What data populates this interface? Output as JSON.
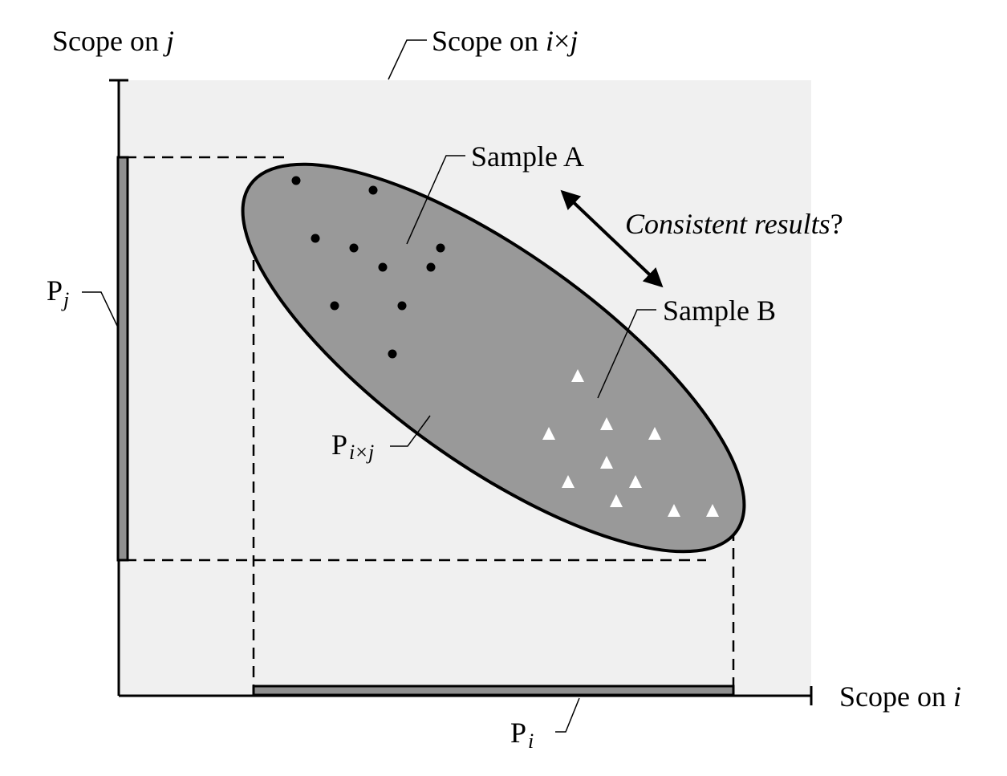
{
  "labels": {
    "scope_j": {
      "base": "Scope on ",
      "var": "j"
    },
    "scope_ixj": {
      "base": "Scope on ",
      "var_i": "i",
      "times": "×",
      "var_j": "j"
    },
    "scope_i": {
      "base": "Scope on ",
      "var": "i"
    },
    "sample_a": "Sample A",
    "sample_b": "Sample B",
    "consistent": {
      "italic": "Consistent results",
      "tail": "?"
    },
    "p_j": {
      "base": "P",
      "sub": "j"
    },
    "p_i": {
      "base": "P",
      "sub": "i"
    },
    "p_ixj": {
      "base": "P",
      "sub_i": "i",
      "times": "×",
      "sub_j": "j"
    }
  },
  "colors": {
    "scope_region": "#f0f0f0",
    "projection_fill": "#999999",
    "projection_bar": "#8f8f8f",
    "marker_a": "#000000",
    "marker_b": "#ffffff",
    "stroke": "#000000"
  },
  "samples": {
    "a_marker": "dot",
    "b_marker": "triangle"
  }
}
